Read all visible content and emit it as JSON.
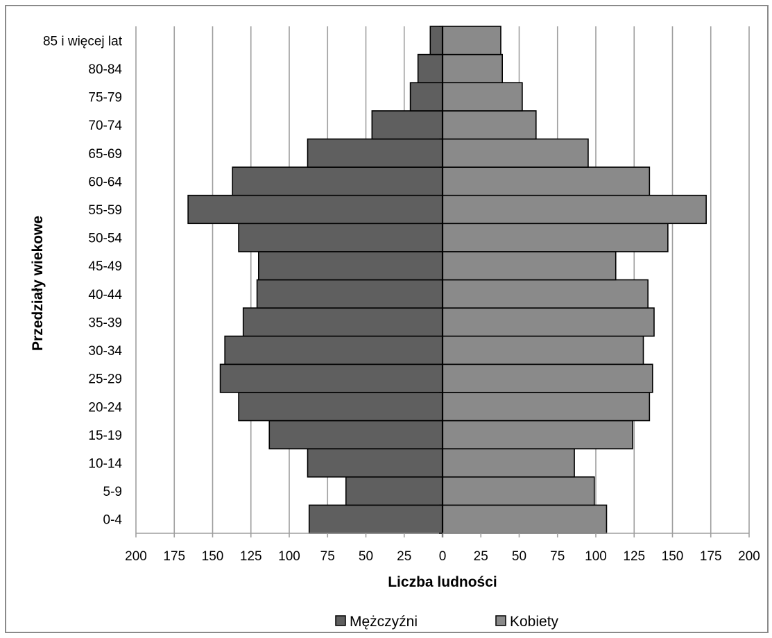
{
  "chart_data": {
    "type": "bar",
    "orientation": "horizontal",
    "subtype": "population-pyramid",
    "xlabel": "Liczba ludności",
    "ylabel": "Przedziały wiekowe",
    "xlim": [
      -200,
      200
    ],
    "x_ticks": [
      -200,
      -175,
      -150,
      -125,
      -100,
      -75,
      -50,
      -25,
      0,
      25,
      50,
      75,
      100,
      125,
      150,
      175,
      200
    ],
    "x_tick_labels": [
      "200",
      "175",
      "150",
      "125",
      "100",
      "75",
      "50",
      "25",
      "0",
      "25",
      "50",
      "75",
      "100",
      "125",
      "150",
      "175",
      "200"
    ],
    "grid": "vertical",
    "legend_position": "bottom",
    "categories": [
      "0-4",
      "5-9",
      "10-14",
      "15-19",
      "20-24",
      "25-29",
      "30-34",
      "35-39",
      "40-44",
      "45-49",
      "50-54",
      "55-59",
      "60-64",
      "65-69",
      "70-74",
      "75-79",
      "80-84",
      "85 i więcej lat"
    ],
    "series": [
      {
        "name": "Mężczyźni",
        "color": "#5f5f5f",
        "direction": "left",
        "values": [
          87,
          63,
          88,
          113,
          133,
          145,
          142,
          130,
          121,
          120,
          133,
          166,
          137,
          88,
          46,
          21,
          16,
          8
        ]
      },
      {
        "name": "Kobiety",
        "color": "#8a8a8a",
        "direction": "right",
        "values": [
          107,
          99,
          86,
          124,
          135,
          137,
          131,
          138,
          134,
          113,
          147,
          172,
          135,
          95,
          61,
          52,
          39,
          38
        ]
      }
    ]
  }
}
